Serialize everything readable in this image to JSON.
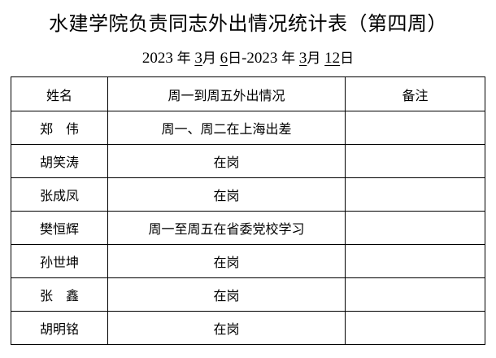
{
  "title": "水建学院负责同志外出情况统计表（第四周）",
  "date_range": {
    "start_year": "2023",
    "start_month": "3",
    "start_day": "6",
    "end_year": "2023",
    "end_month": "3",
    "end_day": "12",
    "year_char": "年",
    "month_char": "月",
    "day_char": "日",
    "separator": "-"
  },
  "table": {
    "headers": [
      "姓名",
      "周一到周五外出情况",
      "备注"
    ],
    "rows": [
      {
        "name": "郑　伟",
        "status": "周一、周二在上海出差",
        "note": ""
      },
      {
        "name": "胡笑涛",
        "status": "在岗",
        "note": ""
      },
      {
        "name": "张成凤",
        "status": "在岗",
        "note": ""
      },
      {
        "name": "樊恒辉",
        "status": "周一至周五在省委党校学习",
        "note": ""
      },
      {
        "name": "孙世坤",
        "status": "在岗",
        "note": ""
      },
      {
        "name": "张　鑫",
        "status": "在岗",
        "note": ""
      },
      {
        "name": "胡明铭",
        "status": "在岗",
        "note": ""
      }
    ]
  }
}
